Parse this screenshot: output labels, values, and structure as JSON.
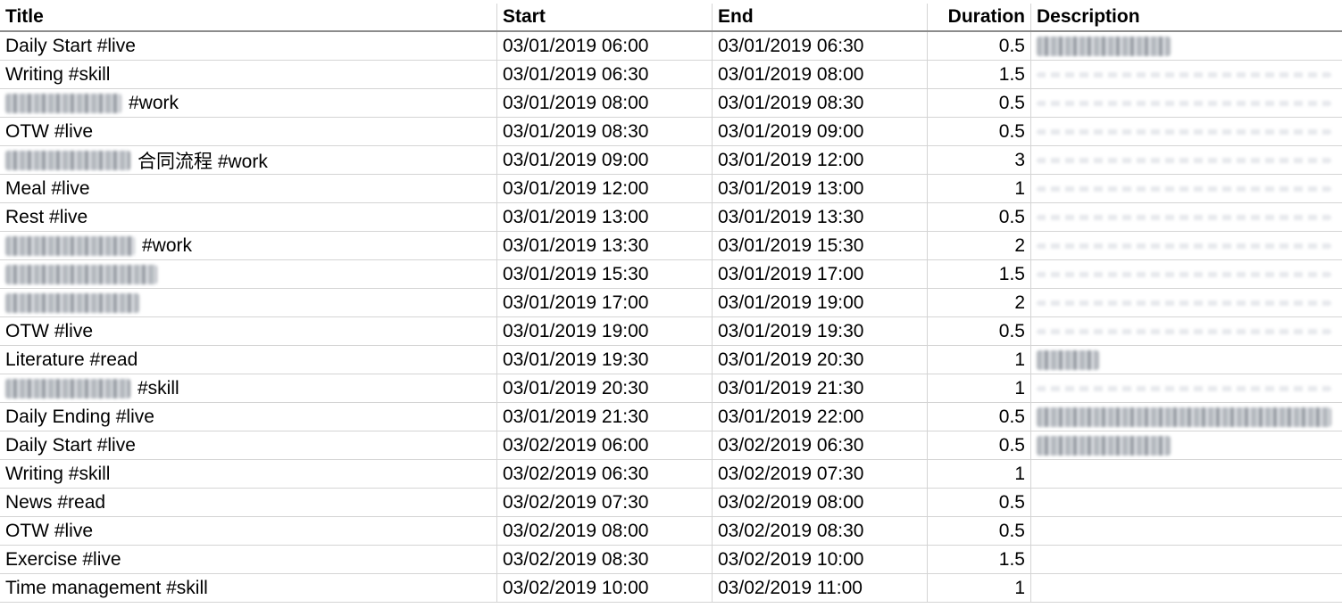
{
  "columns": {
    "title": "Title",
    "start": "Start",
    "end": "End",
    "duration": "Duration",
    "description": "Description"
  },
  "rows": [
    {
      "title": "Daily Start #live",
      "start": "03/01/2019 06:00",
      "end": "03/01/2019 06:30",
      "duration": "0.5",
      "title_redacted": false,
      "desc_redacted": true
    },
    {
      "title": "Writing #skill",
      "start": "03/01/2019 06:30",
      "end": "03/01/2019 08:00",
      "duration": "1.5",
      "title_redacted": false,
      "desc_redacted": false
    },
    {
      "title": "#work",
      "start": "03/01/2019 08:00",
      "end": "03/01/2019 08:30",
      "duration": "0.5",
      "title_redacted": true,
      "desc_redacted": false
    },
    {
      "title": "OTW #live",
      "start": "03/01/2019 08:30",
      "end": "03/01/2019 09:00",
      "duration": "0.5",
      "title_redacted": false,
      "desc_redacted": false
    },
    {
      "title": "合同流程 #work",
      "start": "03/01/2019 09:00",
      "end": "03/01/2019 12:00",
      "duration": "3",
      "title_redacted": true,
      "desc_redacted": false
    },
    {
      "title": "Meal #live",
      "start": "03/01/2019 12:00",
      "end": "03/01/2019 13:00",
      "duration": "1",
      "title_redacted": false,
      "desc_redacted": false
    },
    {
      "title": "Rest #live",
      "start": "03/01/2019 13:00",
      "end": "03/01/2019 13:30",
      "duration": "0.5",
      "title_redacted": false,
      "desc_redacted": false
    },
    {
      "title": "#work",
      "start": "03/01/2019 13:30",
      "end": "03/01/2019 15:30",
      "duration": "2",
      "title_redacted": true,
      "desc_redacted": false
    },
    {
      "title": "",
      "start": "03/01/2019 15:30",
      "end": "03/01/2019 17:00",
      "duration": "1.5",
      "title_redacted": true,
      "desc_redacted": false
    },
    {
      "title": "",
      "start": "03/01/2019 17:00",
      "end": "03/01/2019 19:00",
      "duration": "2",
      "title_redacted": true,
      "desc_redacted": false
    },
    {
      "title": "OTW #live",
      "start": "03/01/2019 19:00",
      "end": "03/01/2019 19:30",
      "duration": "0.5",
      "title_redacted": false,
      "desc_redacted": false
    },
    {
      "title": "Literature #read",
      "start": "03/01/2019 19:30",
      "end": "03/01/2019 20:30",
      "duration": "1",
      "title_redacted": false,
      "desc_redacted": true
    },
    {
      "title": "#skill",
      "start": "03/01/2019 20:30",
      "end": "03/01/2019 21:30",
      "duration": "1",
      "title_redacted": true,
      "desc_redacted": false
    },
    {
      "title": "Daily Ending #live",
      "start": "03/01/2019 21:30",
      "end": "03/01/2019 22:00",
      "duration": "0.5",
      "title_redacted": false,
      "desc_redacted": true
    },
    {
      "title": "Daily Start #live",
      "start": "03/02/2019 06:00",
      "end": "03/02/2019 06:30",
      "duration": "0.5",
      "title_redacted": false,
      "desc_redacted": true
    },
    {
      "title": "Writing #skill",
      "start": "03/02/2019 06:30",
      "end": "03/02/2019 07:30",
      "duration": "1",
      "title_redacted": false,
      "desc_redacted": false
    },
    {
      "title": "News #read",
      "start": "03/02/2019 07:30",
      "end": "03/02/2019 08:00",
      "duration": "0.5",
      "title_redacted": false,
      "desc_redacted": false
    },
    {
      "title": "OTW #live",
      "start": "03/02/2019 08:00",
      "end": "03/02/2019 08:30",
      "duration": "0.5",
      "title_redacted": false,
      "desc_redacted": false
    },
    {
      "title": "Exercise #live",
      "start": "03/02/2019 08:30",
      "end": "03/02/2019 10:00",
      "duration": "1.5",
      "title_redacted": false,
      "desc_redacted": false
    },
    {
      "title": "Time management #skill",
      "start": "03/02/2019 10:00",
      "end": "03/02/2019 11:00",
      "duration": "1",
      "title_redacted": false,
      "desc_redacted": false
    }
  ],
  "colors": {
    "gridline": "#d4d4d4",
    "header_border": "#8c8c8c",
    "active_column_indicator": "#217346"
  }
}
